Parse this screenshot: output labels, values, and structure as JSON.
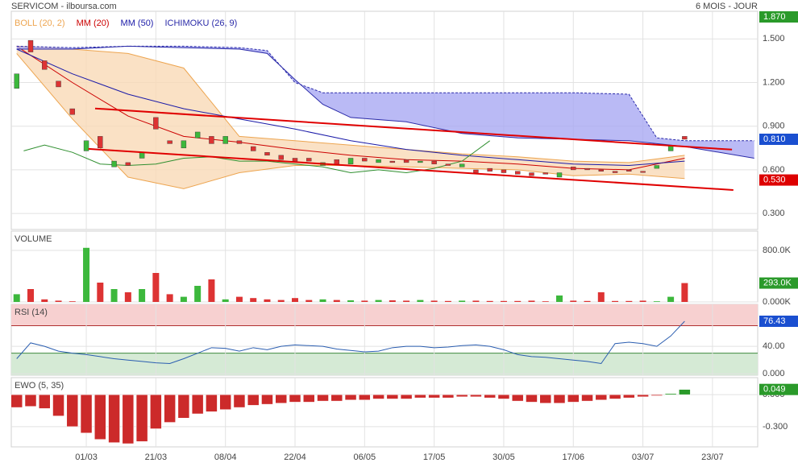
{
  "header": {
    "title": "SERVICOM - ilboursa.com",
    "period": "6 MOIS - JOUR"
  },
  "chart_data": [
    {
      "type": "candlestick",
      "x": [
        0,
        2,
        4,
        6,
        8,
        10,
        12,
        14,
        16,
        18,
        20,
        22,
        24,
        26,
        28,
        30,
        32,
        34,
        36,
        38,
        40,
        42,
        44,
        46,
        48,
        50,
        52,
        54,
        56,
        58,
        60,
        62,
        64,
        66,
        68,
        70,
        72,
        74,
        76,
        78,
        80,
        82,
        84,
        86,
        88,
        90,
        92,
        94,
        96
      ],
      "open": [
        1.16,
        1.49,
        1.35,
        1.21,
        1.02,
        0.73,
        0.83,
        0.62,
        0.65,
        0.68,
        0.96,
        0.8,
        0.75,
        0.82,
        0.83,
        0.78,
        0.8,
        0.76,
        0.72,
        0.7,
        0.68,
        0.68,
        0.63,
        0.67,
        0.64,
        0.68,
        0.65,
        0.66,
        0.67,
        0.65,
        0.66,
        0.64,
        0.62,
        0.6,
        0.61,
        0.6,
        0.59,
        0.58,
        0.58,
        0.55,
        0.62,
        0.61,
        0.6,
        0.59,
        0.6,
        0.59,
        0.61,
        0.73,
        0.83
      ],
      "close": [
        1.26,
        1.41,
        1.29,
        1.17,
        0.98,
        0.8,
        0.75,
        0.66,
        0.63,
        0.72,
        0.88,
        0.78,
        0.8,
        0.86,
        0.78,
        0.83,
        0.78,
        0.73,
        0.7,
        0.67,
        0.66,
        0.66,
        0.65,
        0.64,
        0.68,
        0.66,
        0.67,
        0.65,
        0.65,
        0.66,
        0.64,
        0.63,
        0.64,
        0.58,
        0.59,
        0.58,
        0.57,
        0.56,
        0.57,
        0.58,
        0.6,
        0.6,
        0.59,
        0.58,
        0.59,
        0.585,
        0.63,
        0.77,
        0.81
      ],
      "up_color": "#3cb83c",
      "down_color": "#dd3333",
      "xlim": [
        -0.78,
        106.5
      ],
      "xticks": [
        {
          "value": 10,
          "label": "01/03"
        },
        {
          "value": 20,
          "label": "21/03"
        },
        {
          "value": 30,
          "label": "08/04"
        },
        {
          "value": 40,
          "label": "22/04"
        },
        {
          "value": 50,
          "label": "06/05"
        },
        {
          "value": 60,
          "label": "17/05"
        },
        {
          "value": 70,
          "label": "30/05"
        },
        {
          "value": 80,
          "label": "17/06"
        },
        {
          "value": 90,
          "label": "03/07"
        },
        {
          "value": 100,
          "label": "23/07"
        }
      ],
      "ylim": [
        0.19,
        1.69
      ],
      "yticks": [
        {
          "value": 1.5,
          "label": "1.500"
        },
        {
          "value": 1.2,
          "label": "1.200"
        },
        {
          "value": 0.9,
          "label": "0.900"
        },
        {
          "value": 0.6,
          "label": "0.600"
        },
        {
          "value": 0.3,
          "label": "0.300"
        }
      ],
      "grid": true,
      "tags": [
        {
          "value": 1.87,
          "label": "1.870",
          "color": "#2a9a2a"
        },
        {
          "value": 0.81,
          "label": "0.810",
          "color": "#1a4fd0"
        },
        {
          "value": 0.53,
          "label": "0.530",
          "color": "#dd0000"
        }
      ],
      "overlays": [
        {
          "name": "BOLL (20, 2)",
          "color": "#eda550",
          "fill": "#f9d9b6",
          "x": [
            0,
            8,
            16,
            24,
            32,
            40,
            48,
            56,
            64,
            72,
            80,
            88,
            96
          ],
          "upper": [
            1.45,
            1.43,
            1.4,
            1.3,
            0.83,
            0.8,
            0.77,
            0.74,
            0.71,
            0.69,
            0.66,
            0.65,
            0.7
          ],
          "lower": [
            1.4,
            0.95,
            0.55,
            0.47,
            0.58,
            0.63,
            0.63,
            0.62,
            0.61,
            0.6,
            0.56,
            0.57,
            0.54
          ]
        },
        {
          "name": "MM (20)",
          "color": "#cc0000",
          "x": [
            0,
            8,
            16,
            24,
            32,
            40,
            48,
            56,
            64,
            72,
            80,
            88,
            96
          ],
          "values": [
            1.45,
            1.2,
            0.97,
            0.83,
            0.79,
            0.74,
            0.7,
            0.67,
            0.66,
            0.64,
            0.61,
            0.6,
            0.68
          ]
        },
        {
          "name": "MM (50)",
          "color": "#1a1aa8",
          "x": [
            0,
            8,
            16,
            24,
            32,
            40,
            48,
            56,
            64,
            72,
            80,
            88,
            96
          ],
          "values": [
            1.43,
            1.26,
            1.12,
            1.02,
            0.95,
            0.88,
            0.8,
            0.74,
            0.7,
            0.67,
            0.64,
            0.63,
            0.66
          ]
        },
        {
          "name": "ICHIMOKU (26, 9)",
          "color": "#2a2aa8",
          "fill": "#a9a9f2",
          "lagging_color": "#2f8f2f",
          "x": [
            0,
            8,
            16,
            24,
            32,
            36,
            40,
            44,
            48,
            56,
            64,
            72,
            80,
            88,
            92,
            96,
            106
          ],
          "span_a": [
            1.45,
            1.44,
            1.45,
            1.45,
            1.44,
            1.42,
            1.2,
            1.13,
            1.13,
            1.13,
            1.13,
            1.13,
            1.13,
            1.12,
            0.82,
            0.8,
            0.8
          ],
          "span_b": [
            1.43,
            1.43,
            1.45,
            1.44,
            1.43,
            1.4,
            1.22,
            1.05,
            0.96,
            0.93,
            0.85,
            0.82,
            0.81,
            0.8,
            0.78,
            0.76,
            0.68
          ],
          "lagging_x": [
            1,
            4,
            8,
            12,
            16,
            20,
            24,
            28,
            32,
            36,
            40,
            44,
            48,
            52,
            56,
            60,
            64,
            68
          ],
          "lagging": [
            0.73,
            0.77,
            0.72,
            0.64,
            0.63,
            0.64,
            0.68,
            0.69,
            0.66,
            0.66,
            0.64,
            0.62,
            0.58,
            0.6,
            0.58,
            0.61,
            0.66,
            0.8
          ]
        }
      ],
      "trendlines": [
        {
          "color": "#e00000",
          "x": [
            11.27,
            102.8
          ],
          "values": [
            1.022,
            0.739
          ]
        },
        {
          "color": "#e00000",
          "x": [
            10.3,
            103.0
          ],
          "values": [
            0.744,
            0.461
          ]
        }
      ]
    },
    {
      "type": "volume",
      "title": "VOLUME",
      "values": [
        120000,
        200000,
        40000,
        20000,
        10000,
        840000,
        300000,
        200000,
        150000,
        200000,
        450000,
        120000,
        80000,
        250000,
        350000,
        40000,
        80000,
        60000,
        40000,
        30000,
        60000,
        30000,
        40000,
        30000,
        25000,
        20000,
        30000,
        25000,
        20000,
        30000,
        20000,
        15000,
        20000,
        20000,
        15000,
        15000,
        15000,
        20000,
        10000,
        100000,
        20000,
        15000,
        150000,
        15000,
        15000,
        20000,
        10000,
        80000,
        293000
      ],
      "ylim": [
        0,
        1100000
      ],
      "yticks": [
        {
          "value": 800000,
          "label": "800.0K"
        },
        {
          "value": 0,
          "label": "0.000K"
        }
      ],
      "tags": [
        {
          "value": 293000,
          "label": "293.0K",
          "color": "#2a9a2a"
        }
      ]
    },
    {
      "type": "line",
      "title": "RSI (14)",
      "color": "#2a5db0",
      "values": [
        22,
        45,
        40,
        33,
        30,
        28,
        25,
        22,
        20,
        18,
        16,
        15,
        22,
        30,
        38,
        37,
        33,
        38,
        35,
        40,
        42,
        41,
        40,
        36,
        34,
        32,
        33,
        38,
        40,
        40,
        38,
        39,
        41,
        42,
        40,
        35,
        28,
        25,
        24,
        22,
        20,
        18,
        15,
        44,
        46,
        44,
        40,
        55,
        76.43
      ],
      "ylim": [
        -2,
        101
      ],
      "yticks": [
        {
          "value": 40,
          "label": "40.00"
        },
        {
          "value": 0,
          "label": "0.000"
        }
      ],
      "overbought": 70,
      "overbought_color": "#f7d0d0",
      "overbought_line": "#b03030",
      "oversold": 30,
      "oversold_color": "#d5ead5",
      "oversold_line": "#3d8a3d",
      "tags": [
        {
          "value": 76.43,
          "label": "76.43",
          "color": "#1a4fd0"
        }
      ]
    },
    {
      "type": "bar",
      "title": "EWO (5, 35)",
      "values": [
        -0.12,
        -0.11,
        -0.13,
        -0.2,
        -0.3,
        -0.36,
        -0.42,
        -0.45,
        -0.46,
        -0.44,
        -0.32,
        -0.26,
        -0.22,
        -0.18,
        -0.16,
        -0.14,
        -0.12,
        -0.1,
        -0.09,
        -0.08,
        -0.07,
        -0.07,
        -0.06,
        -0.06,
        -0.05,
        -0.05,
        -0.04,
        -0.04,
        -0.04,
        -0.03,
        -0.03,
        -0.03,
        -0.02,
        -0.02,
        -0.03,
        -0.04,
        -0.06,
        -0.07,
        -0.08,
        -0.08,
        -0.07,
        -0.06,
        -0.05,
        -0.04,
        -0.03,
        -0.02,
        -0.01,
        0.01,
        0.049
      ],
      "up_color": "#2a9a2a",
      "down_color": "#cc2a2a",
      "ylim": [
        -0.49,
        0.16
      ],
      "yticks": [
        {
          "value": 0,
          "label": "0.000"
        },
        {
          "value": -0.3,
          "label": "-0.300"
        }
      ],
      "tags": [
        {
          "value": 0.049,
          "label": "0.049",
          "color": "#2a9a2a"
        }
      ]
    }
  ]
}
